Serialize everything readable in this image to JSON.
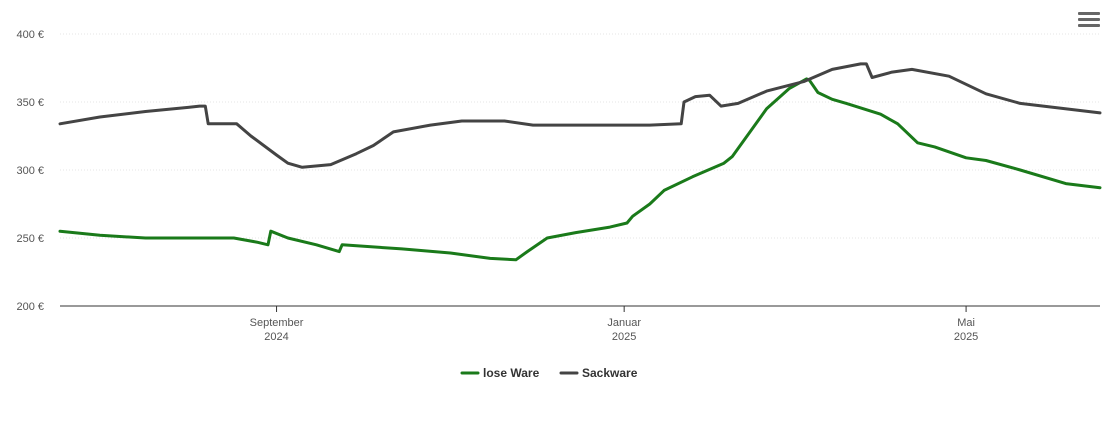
{
  "chart_data": {
    "type": "line",
    "title": "",
    "xlabel": "",
    "ylabel": "",
    "ylim": [
      200,
      400
    ],
    "y_ticks": [
      {
        "value": 200,
        "label": "200 €"
      },
      {
        "value": 250,
        "label": "250 €"
      },
      {
        "value": 300,
        "label": "300 €"
      },
      {
        "value": 350,
        "label": "350 €"
      },
      {
        "value": 400,
        "label": "400 €"
      }
    ],
    "xlim": [
      "2024-06-17",
      "2025-06-17"
    ],
    "x_ticks": [
      {
        "date": "2024-09-01",
        "month": "September",
        "year": "2024"
      },
      {
        "date": "2025-01-01",
        "month": "Januar",
        "year": "2025"
      },
      {
        "date": "2025-05-01",
        "month": "Mai",
        "year": "2025"
      }
    ],
    "grid": true,
    "legend_position": "bottom-center",
    "series": [
      {
        "name": "lose Ware",
        "color": "#1a7a1a",
        "points": [
          [
            "2024-06-17",
            255
          ],
          [
            "2024-07-01",
            252
          ],
          [
            "2024-07-17",
            250
          ],
          [
            "2024-08-01",
            250
          ],
          [
            "2024-08-17",
            250
          ],
          [
            "2024-08-25",
            247
          ],
          [
            "2024-08-29",
            245
          ],
          [
            "2024-08-30",
            255
          ],
          [
            "2024-09-05",
            250
          ],
          [
            "2024-09-15",
            245
          ],
          [
            "2024-09-23",
            240
          ],
          [
            "2024-09-24",
            245
          ],
          [
            "2024-10-15",
            242
          ],
          [
            "2024-11-01",
            239
          ],
          [
            "2024-11-15",
            235
          ],
          [
            "2024-11-24",
            234
          ],
          [
            "2024-11-28",
            240
          ],
          [
            "2024-12-05",
            250
          ],
          [
            "2024-12-15",
            254
          ],
          [
            "2024-12-27",
            258
          ],
          [
            "2025-01-02",
            261
          ],
          [
            "2025-01-04",
            266
          ],
          [
            "2025-01-10",
            275
          ],
          [
            "2025-01-15",
            285
          ],
          [
            "2025-01-25",
            295
          ],
          [
            "2025-02-05",
            305
          ],
          [
            "2025-02-08",
            310
          ],
          [
            "2025-02-20",
            345
          ],
          [
            "2025-02-28",
            360
          ],
          [
            "2025-03-06",
            367
          ],
          [
            "2025-03-07",
            366
          ],
          [
            "2025-03-10",
            357
          ],
          [
            "2025-03-15",
            352
          ],
          [
            "2025-03-20",
            349
          ],
          [
            "2025-04-01",
            341
          ],
          [
            "2025-04-07",
            334
          ],
          [
            "2025-04-14",
            320
          ],
          [
            "2025-04-20",
            317
          ],
          [
            "2025-05-01",
            309
          ],
          [
            "2025-05-08",
            307
          ],
          [
            "2025-05-20",
            300
          ],
          [
            "2025-06-05",
            290
          ],
          [
            "2025-06-17",
            287
          ]
        ]
      },
      {
        "name": "Sackware",
        "color": "#444444",
        "points": [
          [
            "2024-06-17",
            334
          ],
          [
            "2024-07-01",
            339
          ],
          [
            "2024-07-17",
            343
          ],
          [
            "2024-08-01",
            346
          ],
          [
            "2024-08-05",
            347
          ],
          [
            "2024-08-07",
            347
          ],
          [
            "2024-08-08",
            334
          ],
          [
            "2024-08-18",
            334
          ],
          [
            "2024-08-23",
            325
          ],
          [
            "2024-09-01",
            311
          ],
          [
            "2024-09-05",
            305
          ],
          [
            "2024-09-10",
            302
          ],
          [
            "2024-09-20",
            304
          ],
          [
            "2024-09-29",
            312
          ],
          [
            "2024-10-05",
            318
          ],
          [
            "2024-10-12",
            328
          ],
          [
            "2024-10-25",
            333
          ],
          [
            "2024-11-05",
            336
          ],
          [
            "2024-11-20",
            336
          ],
          [
            "2024-11-30",
            333
          ],
          [
            "2024-12-20",
            333
          ],
          [
            "2025-01-10",
            333
          ],
          [
            "2025-01-21",
            334
          ],
          [
            "2025-01-22",
            350
          ],
          [
            "2025-01-26",
            354
          ],
          [
            "2025-01-31",
            355
          ],
          [
            "2025-02-04",
            347
          ],
          [
            "2025-02-10",
            349
          ],
          [
            "2025-02-20",
            358
          ],
          [
            "2025-03-05",
            365
          ],
          [
            "2025-03-15",
            374
          ],
          [
            "2025-03-25",
            378
          ],
          [
            "2025-03-27",
            378
          ],
          [
            "2025-03-29",
            368
          ],
          [
            "2025-04-05",
            372
          ],
          [
            "2025-04-12",
            374
          ],
          [
            "2025-04-25",
            369
          ],
          [
            "2025-05-08",
            356
          ],
          [
            "2025-05-20",
            349
          ],
          [
            "2025-06-17",
            342
          ]
        ]
      }
    ]
  },
  "menu": {
    "icon": "hamburger-menu-icon"
  }
}
